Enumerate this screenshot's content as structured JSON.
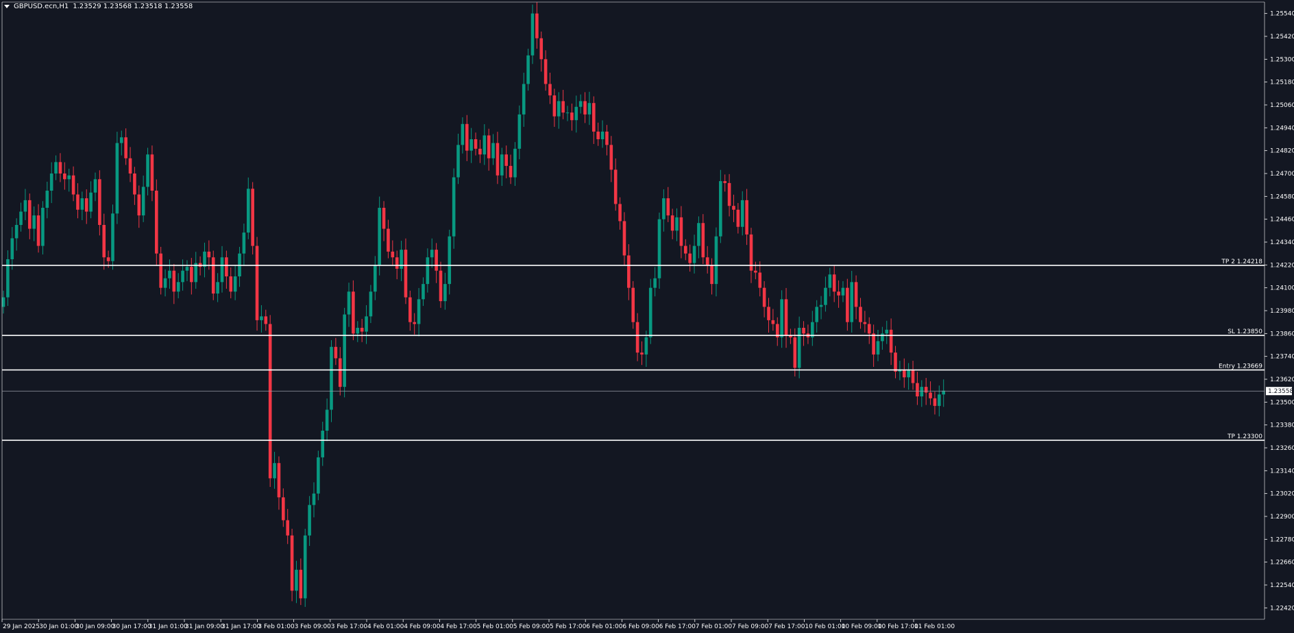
{
  "header": {
    "symbol": "GBPUSD.ecn,H1",
    "ohlc": "1.23529 1.23568 1.23518 1.23558"
  },
  "colors": {
    "background": "#131722",
    "bull": "#089981",
    "bear": "#f23645",
    "line": "#ffffff",
    "axis_text": "#ffffff"
  },
  "chart_data": {
    "type": "candlestick",
    "ylim": [
      1.2236,
      1.256
    ],
    "y_ticks": [
      "1.22420",
      "1.22540",
      "1.22660",
      "1.22780",
      "1.22900",
      "1.23020",
      "1.23140",
      "1.23260",
      "1.23380",
      "1.23500",
      "1.23620",
      "1.23740",
      "1.23860",
      "1.23980",
      "1.24100",
      "1.24220",
      "1.24340",
      "1.24460",
      "1.24580",
      "1.24700",
      "1.24820",
      "1.24940",
      "1.25060",
      "1.25180",
      "1.25300",
      "1.25420",
      "1.25540"
    ],
    "x_ticks": [
      "29 Jan 2025",
      "30 Jan 01:00",
      "30 Jan 09:00",
      "30 Jan 17:00",
      "31 Jan 01:00",
      "31 Jan 09:00",
      "31 Jan 17:00",
      "3 Feb 01:00",
      "3 Feb 09:00",
      "3 Feb 17:00",
      "4 Feb 01:00",
      "4 Feb 09:00",
      "4 Feb 17:00",
      "5 Feb 01:00",
      "5 Feb 09:00",
      "5 Feb 17:00",
      "6 Feb 01:00",
      "6 Feb 09:00",
      "6 Feb 17:00",
      "7 Feb 01:00",
      "7 Feb 09:00",
      "7 Feb 17:00",
      "10 Feb 01:00",
      "10 Feb 09:00",
      "10 Feb 17:00",
      "11 Feb 01:00"
    ],
    "current_price": "1.23558",
    "levels": [
      {
        "label": "TP 2 1.24218",
        "value": 1.24218
      },
      {
        "label": "SL 1.23850",
        "value": 1.2385
      },
      {
        "label": "Entry 1.23669",
        "value": 1.23669
      },
      {
        "label": "TP 1.23300",
        "value": 1.233
      }
    ],
    "closes": [
      1.2405,
      1.2425,
      1.2436,
      1.2443,
      1.245,
      1.2456,
      1.2441,
      1.2448,
      1.2432,
      1.2452,
      1.2461,
      1.247,
      1.2476,
      1.247,
      1.2467,
      1.2469,
      1.2459,
      1.2451,
      1.2457,
      1.245,
      1.246,
      1.2467,
      1.2443,
      1.2426,
      1.2424,
      1.2449,
      1.2486,
      1.2489,
      1.2478,
      1.247,
      1.2459,
      1.2448,
      1.2463,
      1.248,
      1.2461,
      1.2428,
      1.241,
      1.2415,
      1.2419,
      1.2408,
      1.2413,
      1.2419,
      1.2421,
      1.2413,
      1.2423,
      1.2421,
      1.2429,
      1.2426,
      1.2407,
      1.2413,
      1.2426,
      1.2416,
      1.2408,
      1.2416,
      1.2428,
      1.2439,
      1.2462,
      1.2432,
      1.2393,
      1.2395,
      1.2391,
      1.231,
      1.2318,
      1.23,
      1.2288,
      1.228,
      1.2251,
      1.2262,
      1.2247,
      1.228,
      1.2296,
      1.2302,
      1.2321,
      1.2335,
      1.2346,
      1.2379,
      1.2373,
      1.2358,
      1.2396,
      1.2408,
      1.2386,
      1.2389,
      1.2387,
      1.2395,
      1.2408,
      1.2422,
      1.2452,
      1.2441,
      1.2429,
      1.2426,
      1.242,
      1.243,
      1.2405,
      1.2392,
      1.2391,
      1.2404,
      1.2412,
      1.2426,
      1.243,
      1.2419,
      1.2403,
      1.2412,
      1.2437,
      1.2468,
      1.2485,
      1.2496,
      1.2482,
      1.2488,
      1.2483,
      1.248,
      1.249,
      1.2478,
      1.2486,
      1.2469,
      1.248,
      1.2474,
      1.2468,
      1.2483,
      1.2501,
      1.2517,
      1.2532,
      1.2554,
      1.2541,
      1.253,
      1.2517,
      1.2511,
      1.25,
      1.2508,
      1.2502,
      1.2502,
      1.2498,
      1.2505,
      1.2508,
      1.2501,
      1.2507,
      1.2492,
      1.2488,
      1.2492,
      1.2485,
      1.2472,
      1.2454,
      1.2445,
      1.2427,
      1.241,
      1.2392,
      1.2376,
      1.2375,
      1.2384,
      1.241,
      1.2415,
      1.2446,
      1.2457,
      1.2448,
      1.244,
      1.2447,
      1.2432,
      1.2428,
      1.2423,
      1.2432,
      1.2444,
      1.2426,
      1.2422,
      1.2412,
      1.2437,
      1.2466,
      1.2465,
      1.2453,
      1.2451,
      1.2442,
      1.2456,
      1.2438,
      1.2419,
      1.2418,
      1.241,
      1.24,
      1.2393,
      1.2391,
      1.2384,
      1.2404,
      1.2385,
      1.2384,
      1.2368,
      1.2389,
      1.2386,
      1.2384,
      1.2392,
      1.24,
      1.2401,
      1.241,
      1.2417,
      1.2408,
      1.2406,
      1.241,
      1.2392,
      1.2413,
      1.24,
      1.2392,
      1.2391,
      1.2386,
      1.2375,
      1.2382,
      1.2386,
      1.2388,
      1.2376,
      1.2366,
      1.2367,
      1.2363,
      1.2367,
      1.236,
      1.2353,
      1.2358,
      1.2355,
      1.2352,
      1.2348,
      1.2354,
      1.2356
    ]
  }
}
